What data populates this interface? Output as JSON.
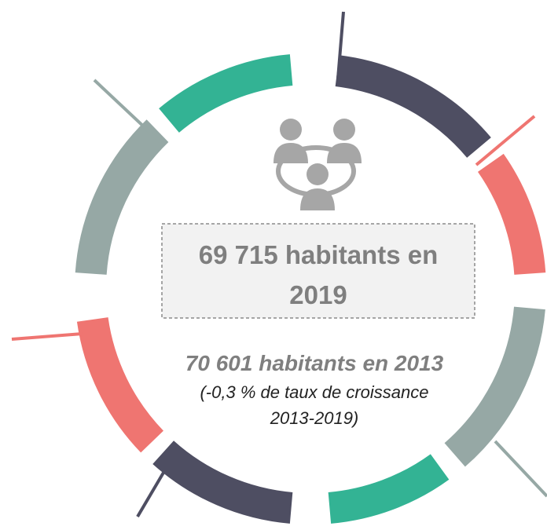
{
  "headline": {
    "lines": [
      "69 715 habitants en",
      "2019"
    ]
  },
  "previous": {
    "line": "70 601 habitants en 2013",
    "detail": [
      "(-0,3 % de taux de croissance",
      "2013-2019)"
    ]
  }
}
